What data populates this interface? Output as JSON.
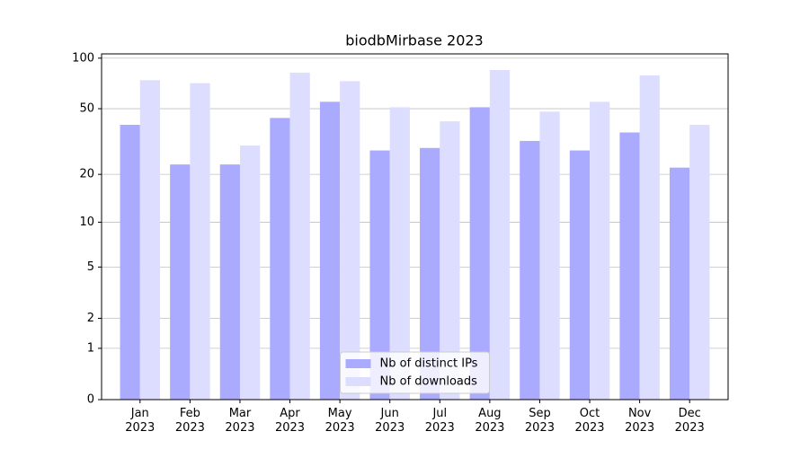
{
  "chart_data": {
    "type": "bar",
    "title": "biodbMirbase 2023",
    "categories": [
      "Jan\n2023",
      "Feb\n2023",
      "Mar\n2023",
      "Apr\n2023",
      "May\n2023",
      "Jun\n2023",
      "Jul\n2023",
      "Aug\n2023",
      "Sep\n2023",
      "Oct\n2023",
      "Nov\n2023",
      "Dec\n2023"
    ],
    "series": [
      {
        "name": "Nb of distinct IPs",
        "color": "#aaaaff",
        "values": [
          40,
          23,
          23,
          44,
          55,
          28,
          29,
          51,
          32,
          28,
          36,
          22
        ]
      },
      {
        "name": "Nb of downloads",
        "color": "#ddddff",
        "values": [
          74,
          71,
          30,
          82,
          73,
          51,
          42,
          85,
          48,
          55,
          79,
          40
        ]
      }
    ],
    "yscale": "log1p",
    "ylim": [
      0,
      106
    ],
    "yticks": [
      0,
      1,
      2,
      5,
      10,
      20,
      50,
      100
    ],
    "grid": true,
    "legend": "lower center"
  }
}
